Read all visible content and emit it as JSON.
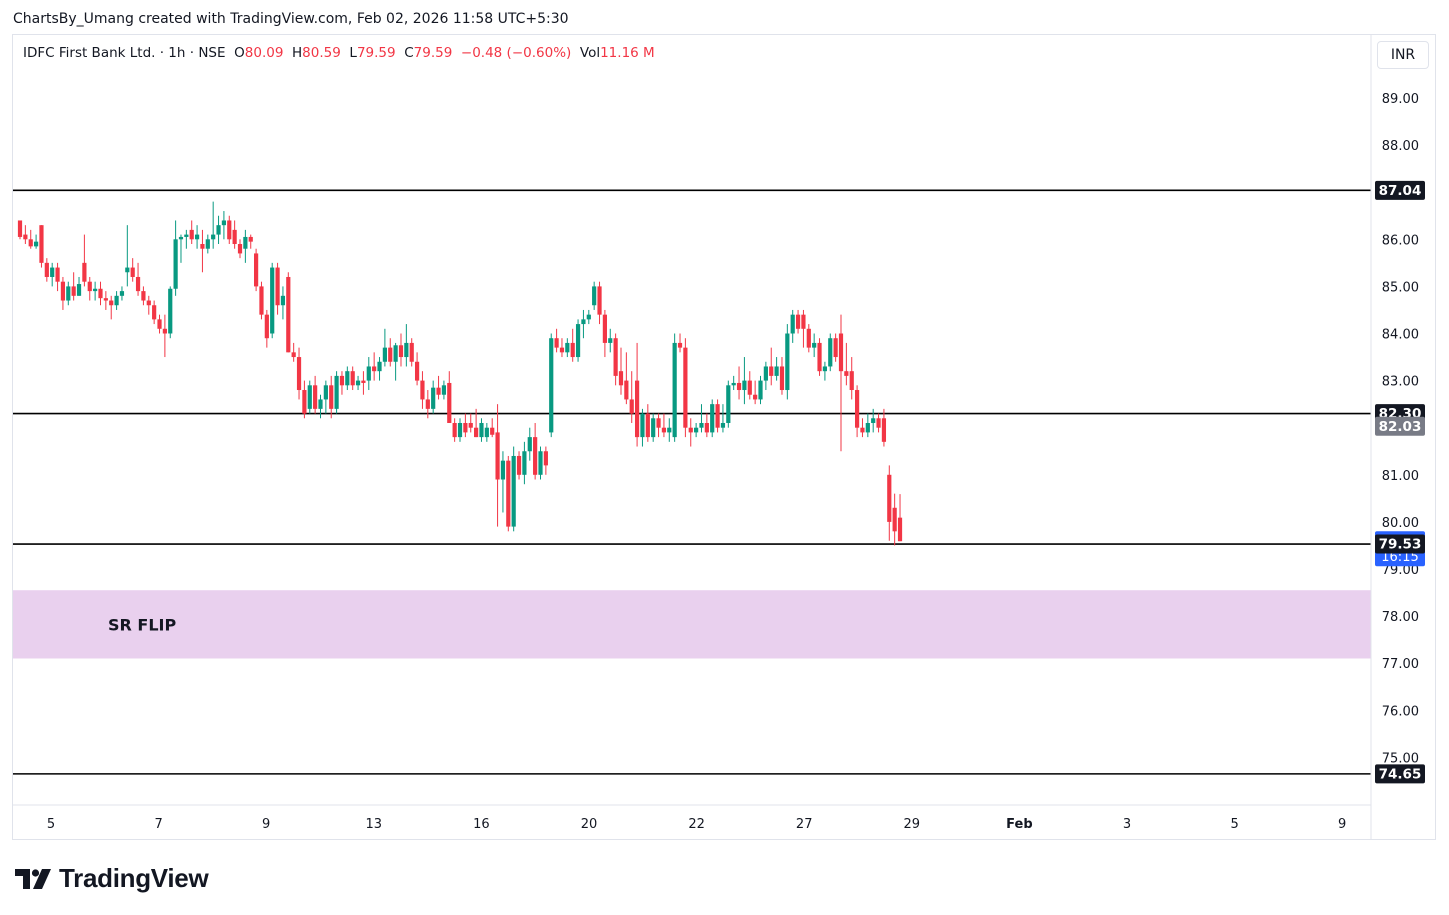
{
  "attribution": "ChartsBy_Umang created with TradingView.com, Feb 02, 2026 11:58 UTC+5:30",
  "legend": {
    "symbol": "IDFC First Bank Ltd. · 1h · NSE",
    "open_label": "O",
    "open": "80.09",
    "high_label": "H",
    "high": "80.59",
    "low_label": "L",
    "low": "79.59",
    "close_label": "C",
    "close": "79.59",
    "change": "−0.48 (−0.60%)",
    "vol_label": "Vol",
    "vol": "11.16 M"
  },
  "currency": "INR",
  "brand": {
    "name": "TradingView",
    "logo_icon": "tradingview-logo-icon"
  },
  "colors": {
    "up": "#089981",
    "down": "#f23645",
    "line": "#000000",
    "zone": "#e1bee7",
    "price_tag": "#2962ff",
    "axis_text": "#131722"
  },
  "chart_data": {
    "type": "candlestick",
    "timeframe": "1h",
    "ylim": [
      74.3,
      90.0
    ],
    "y_ticks": [
      75,
      76,
      77,
      78,
      79,
      80,
      81,
      82,
      83,
      84,
      85,
      86,
      87,
      88,
      89
    ],
    "x_ticks": [
      "5",
      "7",
      "9",
      "13",
      "16",
      "20",
      "22",
      "27",
      "29",
      "Feb",
      "3",
      "5",
      "9"
    ],
    "x_ticks_bold": [
      "Feb"
    ],
    "horizontal_lines": [
      87.04,
      82.3,
      79.53,
      74.65
    ],
    "zone": {
      "label": "SR FLIP",
      "from": 77.1,
      "to": 78.55
    },
    "price_labels": [
      {
        "value": 87.04,
        "text": "87.04",
        "style": "dark"
      },
      {
        "value": 82.3,
        "text": "82.30",
        "style": "dark"
      },
      {
        "value": 82.03,
        "text": "82.03",
        "style": "gray"
      },
      {
        "value": 79.59,
        "text": "79.59",
        "sub": "16:15",
        "style": "blue"
      },
      {
        "value": 79.53,
        "text": "79.53",
        "style": "dark"
      },
      {
        "value": 74.65,
        "text": "74.65",
        "style": "dark"
      }
    ],
    "candles": [
      [
        86.4,
        86.4,
        86.0,
        86.05
      ],
      [
        86.1,
        86.3,
        85.9,
        86.0
      ],
      [
        86.0,
        86.2,
        85.8,
        85.85
      ],
      [
        85.85,
        86.1,
        85.8,
        85.95
      ],
      [
        86.3,
        86.3,
        85.4,
        85.5
      ],
      [
        85.5,
        85.6,
        85.1,
        85.2
      ],
      [
        85.2,
        85.5,
        85.0,
        85.4
      ],
      [
        85.4,
        85.5,
        84.9,
        85.1
      ],
      [
        85.1,
        85.2,
        84.5,
        84.7
      ],
      [
        84.7,
        85.1,
        84.6,
        85.0
      ],
      [
        85.0,
        85.3,
        84.7,
        84.8
      ],
      [
        84.8,
        85.2,
        84.8,
        85.05
      ],
      [
        85.5,
        86.1,
        85.0,
        85.1
      ],
      [
        85.1,
        85.2,
        84.7,
        84.9
      ],
      [
        84.9,
        85.1,
        84.7,
        84.95
      ],
      [
        84.95,
        85.1,
        84.6,
        84.75
      ],
      [
        84.75,
        84.9,
        84.5,
        84.7
      ],
      [
        84.7,
        84.8,
        84.3,
        84.6
      ],
      [
        84.6,
        84.9,
        84.5,
        84.8
      ],
      [
        84.8,
        85.0,
        84.7,
        84.9
      ],
      [
        85.3,
        86.3,
        85.0,
        85.4
      ],
      [
        85.4,
        85.6,
        85.1,
        85.2
      ],
      [
        85.2,
        85.5,
        84.8,
        84.9
      ],
      [
        84.9,
        85.0,
        84.6,
        84.7
      ],
      [
        84.7,
        84.8,
        84.4,
        84.6
      ],
      [
        84.6,
        84.7,
        84.2,
        84.3
      ],
      [
        84.3,
        84.4,
        84.0,
        84.1
      ],
      [
        84.1,
        84.4,
        83.5,
        84.0
      ],
      [
        84.0,
        85.0,
        83.9,
        84.95
      ],
      [
        84.95,
        86.4,
        84.8,
        86.0
      ],
      [
        86.0,
        86.1,
        85.5,
        86.05
      ],
      [
        86.05,
        86.2,
        85.8,
        86.1
      ],
      [
        86.2,
        86.4,
        85.9,
        86.0
      ],
      [
        86.0,
        86.3,
        85.8,
        86.1
      ],
      [
        85.9,
        86.2,
        85.3,
        85.8
      ],
      [
        85.8,
        86.1,
        85.7,
        86.0
      ],
      [
        86.0,
        86.8,
        85.8,
        86.1
      ],
      [
        86.1,
        86.5,
        85.9,
        86.3
      ],
      [
        86.3,
        86.6,
        86.0,
        86.4
      ],
      [
        86.4,
        86.5,
        85.9,
        86.0
      ],
      [
        86.2,
        86.4,
        85.8,
        85.9
      ],
      [
        85.9,
        86.0,
        85.6,
        85.7
      ],
      [
        85.8,
        86.2,
        85.5,
        86.05
      ],
      [
        86.05,
        86.1,
        85.8,
        85.95
      ],
      [
        85.7,
        85.8,
        84.9,
        85.0
      ],
      [
        85.0,
        85.1,
        84.3,
        84.4
      ],
      [
        84.4,
        84.5,
        83.7,
        83.9
      ],
      [
        84.0,
        85.5,
        83.9,
        85.4
      ],
      [
        85.4,
        85.5,
        84.4,
        84.6
      ],
      [
        84.6,
        85.0,
        84.3,
        84.8
      ],
      [
        85.2,
        85.3,
        83.6,
        83.6
      ],
      [
        83.6,
        83.8,
        83.4,
        83.5
      ],
      [
        83.5,
        83.7,
        82.6,
        82.8
      ],
      [
        82.8,
        83.0,
        82.2,
        82.3
      ],
      [
        82.4,
        83.0,
        82.3,
        82.9
      ],
      [
        82.9,
        83.1,
        82.3,
        82.4
      ],
      [
        82.4,
        82.7,
        82.2,
        82.6
      ],
      [
        82.6,
        83.0,
        82.3,
        82.9
      ],
      [
        82.9,
        83.1,
        82.2,
        82.4
      ],
      [
        82.4,
        83.2,
        82.3,
        83.1
      ],
      [
        83.1,
        83.2,
        82.7,
        82.9
      ],
      [
        82.9,
        83.3,
        82.8,
        83.2
      ],
      [
        83.2,
        83.3,
        82.8,
        82.9
      ],
      [
        82.9,
        83.1,
        82.8,
        83.0
      ],
      [
        83.0,
        83.2,
        82.7,
        82.95
      ],
      [
        83.0,
        83.5,
        82.8,
        83.3
      ],
      [
        83.3,
        83.6,
        83.0,
        83.2
      ],
      [
        83.2,
        83.5,
        83.0,
        83.4
      ],
      [
        83.4,
        84.1,
        83.3,
        83.7
      ],
      [
        83.7,
        83.9,
        83.3,
        83.4
      ],
      [
        83.4,
        83.8,
        83.0,
        83.75
      ],
      [
        83.75,
        84.0,
        83.3,
        83.5
      ],
      [
        83.5,
        84.2,
        83.3,
        83.8
      ],
      [
        83.8,
        83.9,
        83.3,
        83.4
      ],
      [
        83.4,
        83.6,
        82.9,
        83.0
      ],
      [
        83.0,
        83.2,
        82.4,
        82.6
      ],
      [
        82.6,
        82.8,
        82.2,
        82.4
      ],
      [
        82.4,
        83.0,
        82.3,
        82.85
      ],
      [
        82.85,
        83.1,
        82.6,
        82.7
      ],
      [
        82.7,
        83.0,
        82.6,
        82.9
      ],
      [
        82.95,
        83.2,
        82.1,
        82.1
      ],
      [
        82.1,
        82.2,
        81.7,
        81.8
      ],
      [
        81.8,
        82.2,
        81.7,
        82.1
      ],
      [
        82.1,
        82.3,
        81.8,
        81.9
      ],
      [
        82.1,
        82.3,
        81.9,
        82.0
      ],
      [
        82.0,
        82.4,
        81.8,
        81.8
      ],
      [
        81.8,
        82.2,
        81.7,
        82.1
      ],
      [
        81.8,
        82.1,
        81.7,
        82.0
      ],
      [
        82.0,
        82.2,
        81.8,
        81.85
      ],
      [
        81.9,
        82.5,
        79.9,
        80.9
      ],
      [
        80.9,
        81.5,
        80.2,
        81.3
      ],
      [
        81.3,
        81.4,
        79.8,
        79.9
      ],
      [
        79.9,
        81.6,
        79.8,
        81.4
      ],
      [
        81.4,
        81.5,
        80.9,
        81.0
      ],
      [
        81.0,
        81.7,
        80.8,
        81.5
      ],
      [
        81.5,
        82.0,
        81.3,
        81.8
      ],
      [
        81.8,
        82.1,
        80.9,
        81.0
      ],
      [
        81.0,
        81.6,
        80.9,
        81.5
      ],
      [
        81.5,
        81.6,
        81.0,
        81.2
      ],
      [
        81.9,
        84.0,
        81.8,
        83.9
      ],
      [
        83.9,
        84.1,
        83.6,
        83.7
      ],
      [
        83.7,
        83.9,
        83.5,
        83.6
      ],
      [
        83.6,
        83.9,
        83.5,
        83.8
      ],
      [
        83.8,
        84.1,
        83.4,
        83.5
      ],
      [
        83.5,
        84.3,
        83.4,
        84.2
      ],
      [
        84.2,
        84.5,
        83.9,
        84.3
      ],
      [
        84.3,
        84.5,
        84.2,
        84.4
      ],
      [
        84.6,
        85.1,
        84.5,
        85.0
      ],
      [
        85.0,
        85.1,
        84.2,
        84.4
      ],
      [
        84.4,
        84.5,
        83.5,
        83.8
      ],
      [
        83.8,
        84.1,
        83.6,
        83.9
      ],
      [
        83.9,
        84.0,
        82.9,
        83.1
      ],
      [
        83.2,
        83.7,
        82.7,
        82.9
      ],
      [
        83.0,
        83.6,
        82.5,
        82.6
      ],
      [
        82.6,
        83.2,
        82.1,
        82.3
      ],
      [
        83.0,
        83.8,
        81.6,
        81.8
      ],
      [
        81.8,
        82.4,
        81.6,
        82.3
      ],
      [
        82.3,
        82.5,
        81.7,
        81.8
      ],
      [
        81.8,
        82.3,
        81.7,
        82.2
      ],
      [
        82.2,
        82.3,
        81.8,
        82.0
      ],
      [
        82.0,
        82.3,
        81.8,
        81.9
      ],
      [
        81.9,
        82.2,
        81.7,
        82.0
      ],
      [
        81.8,
        84.0,
        81.7,
        83.8
      ],
      [
        83.8,
        84.0,
        83.6,
        83.7
      ],
      [
        83.7,
        83.9,
        81.8,
        82.0
      ],
      [
        82.0,
        82.2,
        81.6,
        81.9
      ],
      [
        81.9,
        82.1,
        81.8,
        82.0
      ],
      [
        82.0,
        82.5,
        81.9,
        82.1
      ],
      [
        82.1,
        82.3,
        81.8,
        81.9
      ],
      [
        81.9,
        82.6,
        81.8,
        82.5
      ],
      [
        82.5,
        82.6,
        81.9,
        82.0
      ],
      [
        82.0,
        82.5,
        81.9,
        82.1
      ],
      [
        82.1,
        83.0,
        82.0,
        82.9
      ],
      [
        82.9,
        83.1,
        82.8,
        82.95
      ],
      [
        82.95,
        83.3,
        82.6,
        82.8
      ],
      [
        82.8,
        83.5,
        82.5,
        83.0
      ],
      [
        83.0,
        83.2,
        82.6,
        82.7
      ],
      [
        82.7,
        83.0,
        82.5,
        82.6
      ],
      [
        82.6,
        83.1,
        82.5,
        83.0
      ],
      [
        83.0,
        83.4,
        82.8,
        83.3
      ],
      [
        83.3,
        83.7,
        82.9,
        83.1
      ],
      [
        83.1,
        83.5,
        83.0,
        83.3
      ],
      [
        83.3,
        83.5,
        82.7,
        82.8
      ],
      [
        82.8,
        84.2,
        82.6,
        84.0
      ],
      [
        84.0,
        84.5,
        83.8,
        84.4
      ],
      [
        84.4,
        84.5,
        84.0,
        84.1
      ],
      [
        84.4,
        84.5,
        83.7,
        84.1
      ],
      [
        84.1,
        84.2,
        83.6,
        83.7
      ],
      [
        83.7,
        84.0,
        83.5,
        83.8
      ],
      [
        83.8,
        83.9,
        83.1,
        83.2
      ],
      [
        83.2,
        83.4,
        83.0,
        83.3
      ],
      [
        83.3,
        84.0,
        83.2,
        83.9
      ],
      [
        83.9,
        84.0,
        83.4,
        83.5
      ],
      [
        84.0,
        84.4,
        81.5,
        83.2
      ],
      [
        83.2,
        83.8,
        82.9,
        83.1
      ],
      [
        83.2,
        83.5,
        82.6,
        82.8
      ],
      [
        82.8,
        82.9,
        81.8,
        82.0
      ],
      [
        82.0,
        82.2,
        81.8,
        81.9
      ],
      [
        81.9,
        82.3,
        81.8,
        82.1
      ],
      [
        82.1,
        82.4,
        81.9,
        82.2
      ],
      [
        82.2,
        82.3,
        81.9,
        82.0
      ],
      [
        82.2,
        82.4,
        81.6,
        81.7
      ],
      [
        81.0,
        81.2,
        79.6,
        80.0
      ],
      [
        80.3,
        80.6,
        79.5,
        79.8
      ],
      [
        80.09,
        80.59,
        79.59,
        79.59
      ]
    ]
  }
}
